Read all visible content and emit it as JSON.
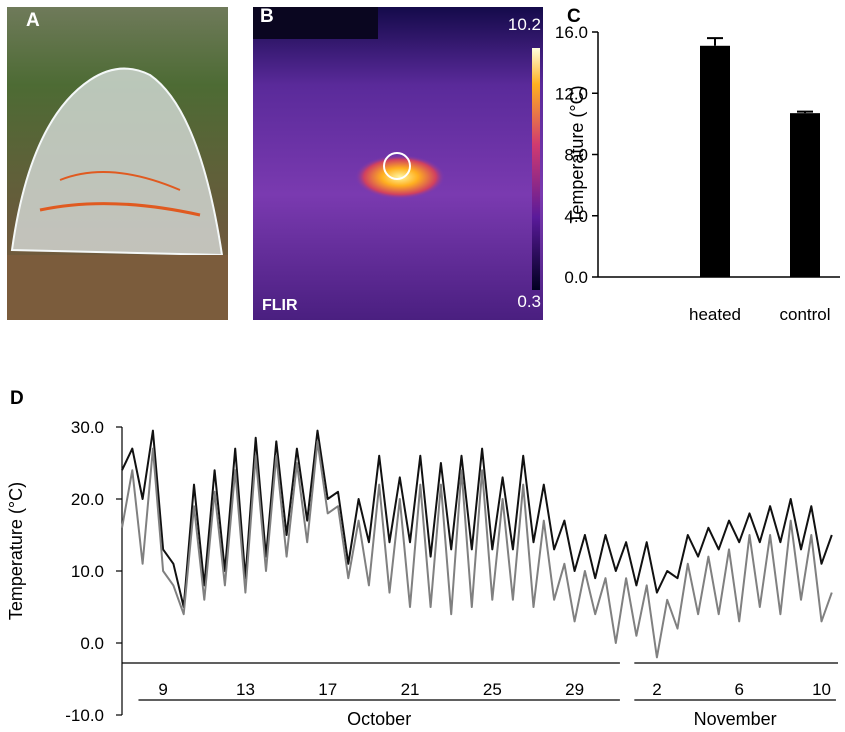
{
  "panel_a": {
    "label": "A"
  },
  "panel_b": {
    "label": "B",
    "brand": "FLIR",
    "clim": [
      0.3,
      10.2
    ]
  },
  "chart_data": [
    {
      "type": "bar",
      "panel_label": "C",
      "ylabel": "Temperature (°C)",
      "categories": [
        "heated",
        "control"
      ],
      "values": [
        15.1,
        10.7
      ],
      "errors": [
        0.5,
        0.1
      ],
      "color": "#000000",
      "ylim": [
        0,
        16
      ],
      "yticks": [
        {
          "value": 0,
          "label": "0.0"
        },
        {
          "value": 4,
          "label": "4.0"
        },
        {
          "value": 8,
          "label": "8.0"
        },
        {
          "value": 12,
          "label": "12.0"
        },
        {
          "value": 16,
          "label": "16.0"
        }
      ]
    },
    {
      "type": "line",
      "panel_label": "D",
      "ylabel": "Temperature (°C)",
      "x": [
        7,
        7.5,
        8,
        8.5,
        9,
        9.5,
        10,
        10.5,
        11,
        11.5,
        12,
        12.5,
        13,
        13.5,
        14,
        14.5,
        15,
        15.5,
        16,
        16.5,
        17,
        17.5,
        18,
        18.5,
        19,
        19.5,
        20,
        20.5,
        21,
        21.5,
        22,
        22.5,
        23,
        23.5,
        24,
        24.5,
        25,
        25.5,
        26,
        26.5,
        27,
        27.5,
        28,
        28.5,
        29,
        29.5,
        30,
        30.5,
        31,
        31.5,
        32,
        32.5,
        33,
        33.5,
        34,
        34.5,
        35,
        35.5,
        36,
        36.5,
        37,
        37.5,
        38,
        38.5,
        39,
        39.5,
        40,
        40.5,
        41,
        41.5
      ],
      "series": [
        {
          "color": "#111111",
          "values": [
            24,
            27,
            20,
            29.5,
            13,
            11,
            5,
            22,
            8,
            24,
            10,
            27,
            9,
            28.5,
            12,
            28,
            15,
            27,
            17,
            29.5,
            20,
            21,
            11,
            20,
            14,
            26,
            14,
            23,
            14,
            26,
            12,
            25,
            13,
            26,
            13,
            27,
            13,
            23,
            13,
            26,
            14,
            22,
            13,
            17,
            10,
            15,
            9,
            15,
            10,
            14,
            8,
            14,
            7,
            10,
            9,
            15,
            12,
            16,
            13,
            17,
            14,
            18,
            14,
            19,
            14,
            20,
            13,
            19,
            11,
            15
          ]
        },
        {
          "color": "#808080",
          "values": [
            16,
            24,
            11,
            27,
            10,
            8,
            4,
            19,
            6,
            21,
            8,
            24,
            7,
            26,
            10,
            26,
            12,
            25,
            14,
            28,
            18,
            19,
            9,
            17,
            8,
            22,
            7,
            20,
            5,
            22,
            5,
            22,
            4,
            24,
            5,
            24,
            6,
            20,
            6,
            22,
            5,
            17,
            6,
            11,
            3,
            10,
            4,
            9,
            0,
            9,
            1,
            8,
            -2,
            6,
            2,
            11,
            4,
            12,
            4,
            13,
            3,
            15,
            5,
            15,
            4,
            17,
            6,
            15,
            3,
            7
          ]
        }
      ],
      "xlim": [
        7,
        41.8
      ],
      "ylim": [
        -10,
        30
      ],
      "xticks": [
        9,
        13,
        17,
        21,
        25,
        29,
        {
          "value": 33,
          "label": "2"
        },
        {
          "value": 37,
          "label": "6"
        },
        {
          "value": 41,
          "label": "10"
        }
      ],
      "x_groups": [
        {
          "label": "October",
          "range": [
            7.8,
            31.2
          ]
        },
        {
          "label": "November",
          "range": [
            31.9,
            41.7
          ]
        }
      ],
      "yticks": [
        {
          "value": -10,
          "label": "-10.0"
        },
        {
          "value": 0,
          "label": "0.0"
        },
        {
          "value": 10,
          "label": "10.0"
        },
        {
          "value": 20,
          "label": "20.0"
        },
        {
          "value": 30,
          "label": "30.0"
        }
      ]
    }
  ]
}
